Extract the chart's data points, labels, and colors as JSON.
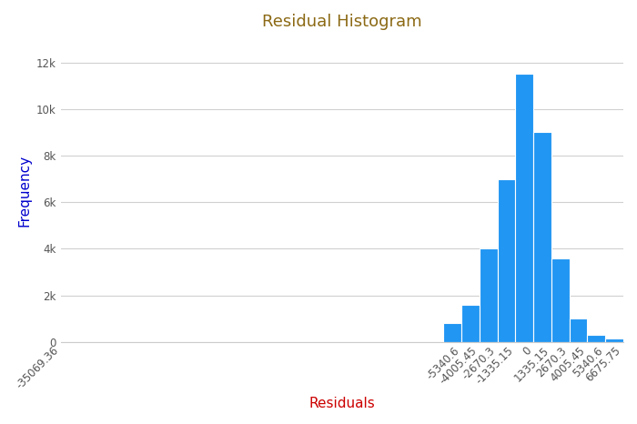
{
  "title": "Residual Histogram",
  "title_color": "#8B6914",
  "xlabel": "Residuals",
  "xlabel_color": "#CC0000",
  "ylabel": "Frequency",
  "ylabel_color": "#0000CD",
  "bar_color": "#2196F3",
  "bar_edgecolor": "white",
  "bin_edges": [
    -6675.75,
    -5340.6,
    -4005.45,
    -2670.3,
    -1335.15,
    0,
    1335.15,
    2670.3,
    4005.45,
    5340.6,
    6675.75
  ],
  "bar_heights": [
    800,
    1600,
    4000,
    7000,
    11500,
    9000,
    3600,
    1000,
    300,
    150
  ],
  "xtick_positions": [
    -35069.36,
    -5340.6,
    -4005.45,
    -2670.3,
    -1335.15,
    0,
    1335.15,
    2670.3,
    4005.45,
    5340.6,
    6675.75
  ],
  "xtick_labels": [
    "-35069.36",
    "-5340.6",
    "-4005.45",
    "-2670.3",
    "-1335.15",
    "0",
    "1335.15",
    "2670.3",
    "4005.45",
    "5340.6",
    "6675.75"
  ],
  "xlim": [
    -35069.36,
    6675.75
  ],
  "ylim": [
    0,
    13000
  ],
  "yticks": [
    0,
    2000,
    4000,
    6000,
    8000,
    10000,
    12000
  ],
  "ytick_labels": [
    "0",
    "2k",
    "4k",
    "6k",
    "8k",
    "10k",
    "12k"
  ],
  "background_color": "#ffffff",
  "grid_color": "#d0d0d0",
  "title_fontsize": 13,
  "axis_label_fontsize": 11,
  "tick_fontsize": 8.5
}
